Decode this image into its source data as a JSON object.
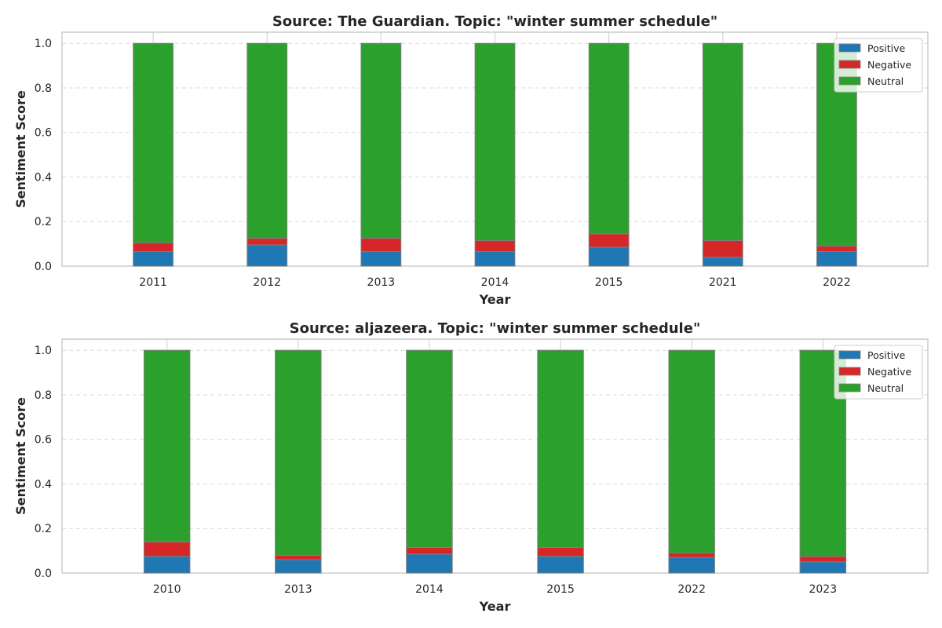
{
  "colors": {
    "positive": "#1f77b4",
    "negative": "#d62728",
    "neutral": "#2ca02c",
    "grid": "#d9d9d9",
    "spine": "#cccccc",
    "bar_edge": "#808080"
  },
  "chart_data": [
    {
      "type": "bar",
      "stacked": true,
      "title": "Source: The Guardian. Topic: \"winter summer schedule\"",
      "xlabel": "Year",
      "ylabel": "Sentiment Score",
      "ylim": [
        0,
        1.05
      ],
      "yticks": [
        0.0,
        0.2,
        0.4,
        0.6,
        0.8,
        1.0
      ],
      "ytick_labels": [
        "0.0",
        "0.2",
        "0.4",
        "0.6",
        "0.8",
        "1.0"
      ],
      "grid": "y dashed",
      "legend_position": "top-right",
      "categories": [
        "2011",
        "2012",
        "2013",
        "2014",
        "2015",
        "2021",
        "2022"
      ],
      "series": [
        {
          "name": "Positive",
          "color_key": "positive",
          "values": [
            0.065,
            0.095,
            0.065,
            0.065,
            0.085,
            0.04,
            0.065
          ]
        },
        {
          "name": "Negative",
          "color_key": "negative",
          "values": [
            0.04,
            0.03,
            0.06,
            0.05,
            0.06,
            0.075,
            0.025
          ]
        },
        {
          "name": "Neutral",
          "color_key": "neutral",
          "values": [
            0.895,
            0.875,
            0.875,
            0.885,
            0.855,
            0.885,
            0.91
          ]
        }
      ]
    },
    {
      "type": "bar",
      "stacked": true,
      "title": "Source: aljazeera. Topic: \"winter summer schedule\"",
      "xlabel": "Year",
      "ylabel": "Sentiment Score",
      "ylim": [
        0,
        1.05
      ],
      "yticks": [
        0.0,
        0.2,
        0.4,
        0.6,
        0.8,
        1.0
      ],
      "ytick_labels": [
        "0.0",
        "0.2",
        "0.4",
        "0.6",
        "0.8",
        "1.0"
      ],
      "grid": "y dashed",
      "legend_position": "top-right",
      "categories": [
        "2010",
        "2013",
        "2014",
        "2015",
        "2022",
        "2023"
      ],
      "series": [
        {
          "name": "Positive",
          "color_key": "positive",
          "values": [
            0.075,
            0.06,
            0.085,
            0.075,
            0.07,
            0.05
          ]
        },
        {
          "name": "Negative",
          "color_key": "negative",
          "values": [
            0.065,
            0.02,
            0.03,
            0.04,
            0.02,
            0.025
          ]
        },
        {
          "name": "Neutral",
          "color_key": "neutral",
          "values": [
            0.86,
            0.92,
            0.885,
            0.885,
            0.91,
            0.925
          ]
        }
      ]
    }
  ]
}
